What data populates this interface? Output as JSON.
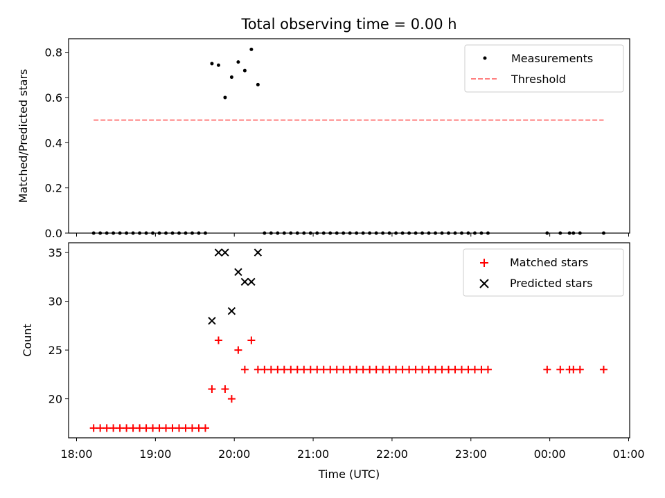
{
  "chart_data": [
    {
      "type": "scatter",
      "title": "Total observing time = 0.00 h",
      "ylabel": "Matched/Predicted stars",
      "xlim": [
        "18:00",
        "01:00"
      ],
      "ylim": [
        0,
        0.86
      ],
      "yticks": [
        0.0,
        0.2,
        0.4,
        0.6,
        0.8
      ],
      "ytick_labels": [
        "0.0",
        "0.2",
        "0.4",
        "0.6",
        "0.8"
      ],
      "legend_position": "top-right",
      "series": [
        {
          "name": "Measurements",
          "marker": "dot",
          "color": "#000000",
          "points": [
            [
              "18:13",
              0
            ],
            [
              "18:18",
              0
            ],
            [
              "18:23",
              0
            ],
            [
              "18:28",
              0
            ],
            [
              "18:33",
              0
            ],
            [
              "18:38",
              0
            ],
            [
              "18:43",
              0
            ],
            [
              "18:48",
              0
            ],
            [
              "18:53",
              0
            ],
            [
              "18:58",
              0
            ],
            [
              "19:03",
              0
            ],
            [
              "19:08",
              0
            ],
            [
              "19:13",
              0
            ],
            [
              "19:18",
              0
            ],
            [
              "19:23",
              0
            ],
            [
              "19:28",
              0
            ],
            [
              "19:33",
              0
            ],
            [
              "19:38",
              0
            ],
            [
              "19:43",
              0.75
            ],
            [
              "19:48",
              0.743
            ],
            [
              "19:53",
              0.6
            ],
            [
              "19:58",
              0.69
            ],
            [
              "20:03",
              0.757
            ],
            [
              "20:08",
              0.719
            ],
            [
              "20:13",
              0.813
            ],
            [
              "20:18",
              0.657
            ],
            [
              "20:23",
              0
            ],
            [
              "20:28",
              0
            ],
            [
              "20:33",
              0
            ],
            [
              "20:38",
              0
            ],
            [
              "20:43",
              0
            ],
            [
              "20:48",
              0
            ],
            [
              "20:53",
              0
            ],
            [
              "20:58",
              0
            ],
            [
              "21:03",
              0
            ],
            [
              "21:08",
              0
            ],
            [
              "21:13",
              0
            ],
            [
              "21:18",
              0
            ],
            [
              "21:23",
              0
            ],
            [
              "21:28",
              0
            ],
            [
              "21:33",
              0
            ],
            [
              "21:38",
              0
            ],
            [
              "21:43",
              0
            ],
            [
              "21:48",
              0
            ],
            [
              "21:53",
              0
            ],
            [
              "21:58",
              0
            ],
            [
              "22:03",
              0
            ],
            [
              "22:08",
              0
            ],
            [
              "22:13",
              0
            ],
            [
              "22:18",
              0
            ],
            [
              "22:23",
              0
            ],
            [
              "22:28",
              0
            ],
            [
              "22:33",
              0
            ],
            [
              "22:38",
              0
            ],
            [
              "22:43",
              0
            ],
            [
              "22:48",
              0
            ],
            [
              "22:53",
              0
            ],
            [
              "22:58",
              0
            ],
            [
              "23:03",
              0
            ],
            [
              "23:08",
              0
            ],
            [
              "23:13",
              0
            ],
            [
              "23:58",
              0
            ],
            [
              "00:08",
              0
            ],
            [
              "00:15",
              0
            ],
            [
              "00:18",
              0
            ],
            [
              "00:23",
              0
            ],
            [
              "00:41",
              0
            ]
          ]
        },
        {
          "name": "Threshold",
          "marker": "dashed-line",
          "color": "#ff7f7f",
          "points": [
            [
              "18:13",
              0.5
            ],
            [
              "00:41",
              0.5
            ]
          ]
        }
      ]
    },
    {
      "type": "scatter",
      "xlabel": "Time (UTC)",
      "ylabel": "Count",
      "xlim": [
        "18:00",
        "01:00"
      ],
      "ylim": [
        16.0,
        36.0
      ],
      "xticks": [
        "18:00",
        "19:00",
        "20:00",
        "21:00",
        "22:00",
        "23:00",
        "00:00",
        "01:00"
      ],
      "yticks": [
        20,
        25,
        30,
        35
      ],
      "ytick_labels": [
        "20",
        "25",
        "30",
        "35"
      ],
      "legend_position": "top-right",
      "series": [
        {
          "name": "Matched stars",
          "marker": "plus",
          "color": "#ff0000",
          "points": [
            [
              "18:13",
              17
            ],
            [
              "18:18",
              17
            ],
            [
              "18:23",
              17
            ],
            [
              "18:28",
              17
            ],
            [
              "18:33",
              17
            ],
            [
              "18:38",
              17
            ],
            [
              "18:43",
              17
            ],
            [
              "18:48",
              17
            ],
            [
              "18:53",
              17
            ],
            [
              "18:58",
              17
            ],
            [
              "19:03",
              17
            ],
            [
              "19:08",
              17
            ],
            [
              "19:13",
              17
            ],
            [
              "19:18",
              17
            ],
            [
              "19:23",
              17
            ],
            [
              "19:28",
              17
            ],
            [
              "19:33",
              17
            ],
            [
              "19:38",
              17
            ],
            [
              "19:43",
              21
            ],
            [
              "19:48",
              26
            ],
            [
              "19:53",
              21
            ],
            [
              "19:58",
              20
            ],
            [
              "20:03",
              25
            ],
            [
              "20:08",
              23
            ],
            [
              "20:13",
              26
            ],
            [
              "20:18",
              23
            ],
            [
              "20:23",
              23
            ],
            [
              "20:28",
              23
            ],
            [
              "20:33",
              23
            ],
            [
              "20:38",
              23
            ],
            [
              "20:43",
              23
            ],
            [
              "20:48",
              23
            ],
            [
              "20:53",
              23
            ],
            [
              "20:58",
              23
            ],
            [
              "21:03",
              23
            ],
            [
              "21:08",
              23
            ],
            [
              "21:13",
              23
            ],
            [
              "21:18",
              23
            ],
            [
              "21:23",
              23
            ],
            [
              "21:28",
              23
            ],
            [
              "21:33",
              23
            ],
            [
              "21:38",
              23
            ],
            [
              "21:43",
              23
            ],
            [
              "21:48",
              23
            ],
            [
              "21:53",
              23
            ],
            [
              "21:58",
              23
            ],
            [
              "22:03",
              23
            ],
            [
              "22:08",
              23
            ],
            [
              "22:13",
              23
            ],
            [
              "22:18",
              23
            ],
            [
              "22:23",
              23
            ],
            [
              "22:28",
              23
            ],
            [
              "22:33",
              23
            ],
            [
              "22:38",
              23
            ],
            [
              "22:43",
              23
            ],
            [
              "22:48",
              23
            ],
            [
              "22:53",
              23
            ],
            [
              "22:58",
              23
            ],
            [
              "23:03",
              23
            ],
            [
              "23:08",
              23
            ],
            [
              "23:13",
              23
            ],
            [
              "23:58",
              23
            ],
            [
              "00:08",
              23
            ],
            [
              "00:15",
              23
            ],
            [
              "00:18",
              23
            ],
            [
              "00:23",
              23
            ],
            [
              "00:41",
              23
            ]
          ]
        },
        {
          "name": "Predicted stars",
          "marker": "x",
          "color": "#000000",
          "points": [
            [
              "19:43",
              28
            ],
            [
              "19:48",
              35
            ],
            [
              "19:53",
              35
            ],
            [
              "19:58",
              29
            ],
            [
              "20:03",
              33
            ],
            [
              "20:08",
              32
            ],
            [
              "20:13",
              32
            ],
            [
              "20:18",
              35
            ]
          ]
        }
      ]
    }
  ]
}
